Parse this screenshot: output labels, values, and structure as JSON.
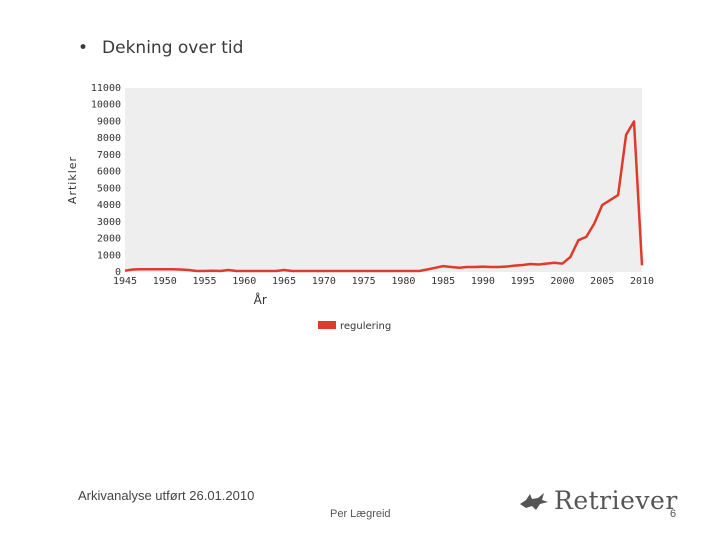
{
  "slide": {
    "bullet": "•",
    "title": "Dekning over tid",
    "footer_left": "Arkivanalyse utført 26.01.2010",
    "footer_center": "Per Lægreid",
    "logo_text": "Retriever",
    "page_number": "6"
  },
  "chart_data": {
    "type": "line",
    "title": "",
    "xlabel": "År",
    "ylabel": "Artikler",
    "xlim": [
      1945,
      2010
    ],
    "ylim": [
      0,
      11000
    ],
    "x_ticks": [
      1945,
      1950,
      1955,
      1960,
      1965,
      1970,
      1975,
      1980,
      1985,
      1990,
      1995,
      2000,
      2005,
      2010
    ],
    "y_ticks": [
      0,
      1000,
      2000,
      3000,
      4000,
      5000,
      6000,
      7000,
      8000,
      9000,
      10000,
      11000
    ],
    "grid": false,
    "legend_position": "bottom",
    "colors": {
      "series": "#e03a2c",
      "plot_bg": "#eeeeee"
    },
    "series": [
      {
        "name": "regulering",
        "x": [
          1945,
          1946,
          1947,
          1948,
          1949,
          1950,
          1951,
          1952,
          1953,
          1954,
          1955,
          1956,
          1957,
          1958,
          1959,
          1960,
          1961,
          1962,
          1963,
          1964,
          1965,
          1966,
          1967,
          1968,
          1969,
          1970,
          1971,
          1972,
          1973,
          1974,
          1975,
          1976,
          1977,
          1978,
          1979,
          1980,
          1981,
          1982,
          1983,
          1984,
          1985,
          1986,
          1987,
          1988,
          1989,
          1990,
          1991,
          1992,
          1993,
          1994,
          1995,
          1996,
          1997,
          1998,
          1999,
          2000,
          2001,
          2002,
          2003,
          2004,
          2005,
          2006,
          2007,
          2008,
          2009,
          2010
        ],
        "values": [
          80,
          150,
          170,
          160,
          170,
          160,
          160,
          150,
          120,
          60,
          60,
          70,
          60,
          120,
          60,
          60,
          60,
          60,
          60,
          60,
          120,
          60,
          60,
          60,
          60,
          60,
          60,
          60,
          60,
          60,
          60,
          60,
          60,
          60,
          60,
          60,
          60,
          60,
          150,
          250,
          350,
          300,
          250,
          300,
          300,
          320,
          300,
          300,
          330,
          380,
          420,
          480,
          450,
          500,
          550,
          500,
          900,
          1900,
          2100,
          2900,
          4000,
          4300,
          4600,
          8200,
          9000,
          400
        ]
      }
    ]
  }
}
